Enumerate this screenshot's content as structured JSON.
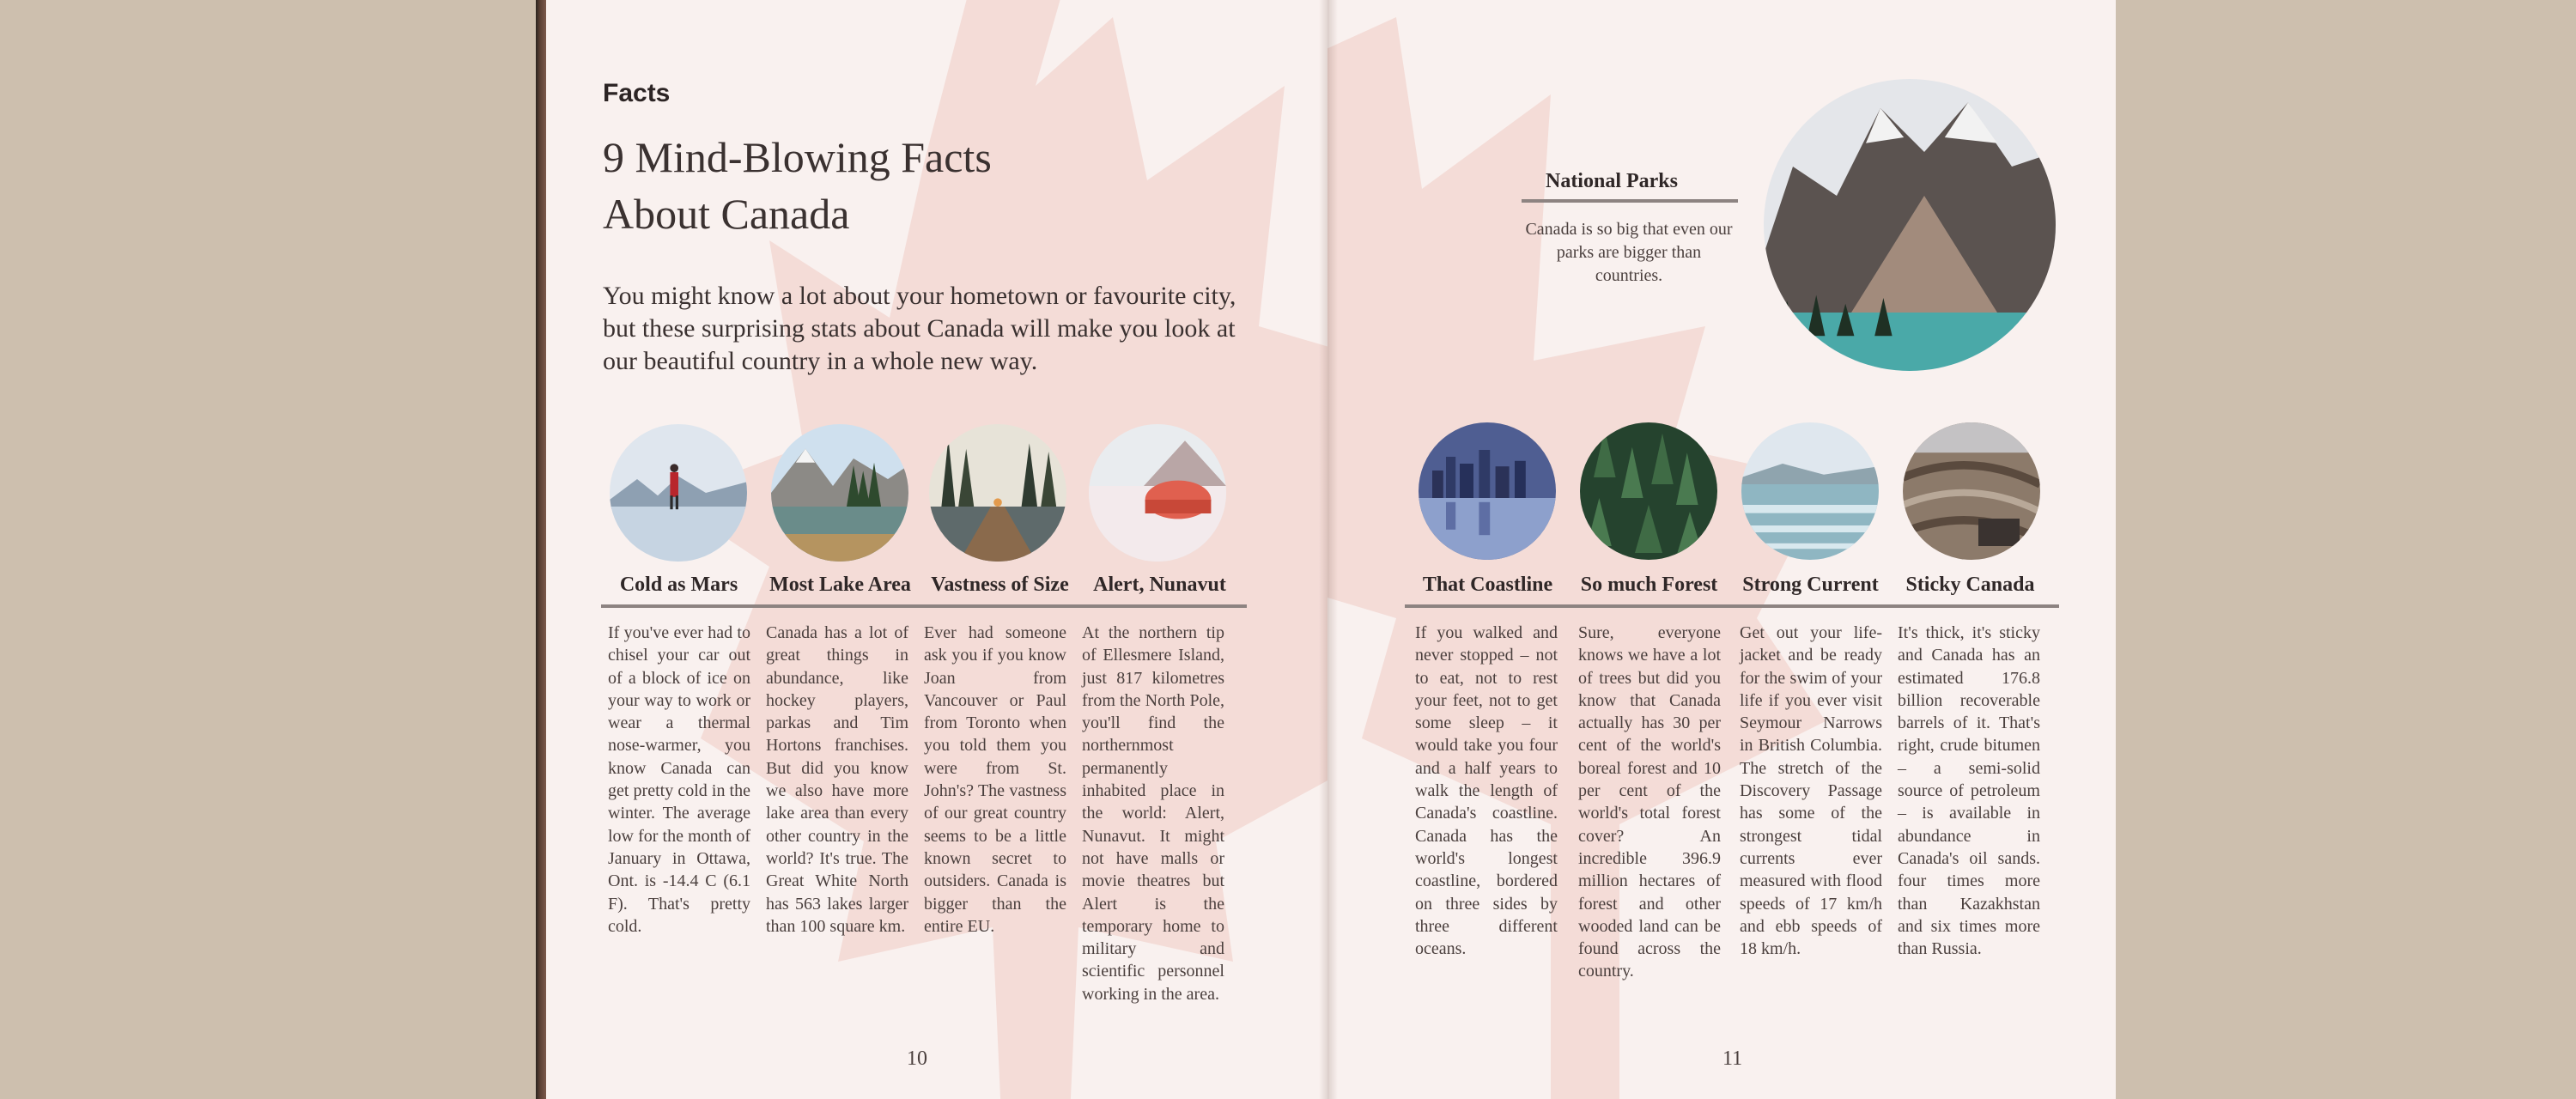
{
  "left_page": {
    "section_label": "Facts",
    "headline_line1": "9 Mind-Blowing Facts",
    "headline_line2": "About Canada",
    "intro": "You might know a lot about your hometown or favourite city, but these surprising stats about Canada will make you look at our beautiful country in a whole new way.",
    "page_number": "10",
    "facts": [
      {
        "title": "Cold as Mars",
        "image_icon": "icy-lake-hiker-photo",
        "body": "If you've ever had to chisel your car out of a block of ice on your way to work or wear a thermal nose-warmer, you know Canada can get pretty cold in the winter. The average low for the month of January in Ottawa, Ont. is -14.4 C (6.1 F). That's pretty cold."
      },
      {
        "title": "Most Lake Area",
        "image_icon": "mountain-lake-photo",
        "body": "Canada has a lot of great things in abundance, like hockey players, parkas and Tim Hortons franchises. But did you know we also have more lake area than every other country in the world? It's true. The Great White North has 563 lakes larger than 100 square km."
      },
      {
        "title": "Vastness of Size",
        "image_icon": "forest-boardwalk-photo",
        "body": "Ever had someone ask you if you know Joan from Vancouver or Paul from Toronto when you told them you were from St. John's? The vastness of our great country seems to be a little known secret to outsiders. Canada is bigger than the entire EU."
      },
      {
        "title": "Alert, Nunavut",
        "image_icon": "snow-tent-photo",
        "body": "At the northern tip of Ellesmere Island, just 817 kilometres from the North Pole, you'll find the northernmost permanently inhabited place in the world: Alert, Nunavut. It might not have malls or movie theatres but Alert is the temporary home to military and scientific personnel working in the area."
      }
    ]
  },
  "right_page": {
    "page_number": "11",
    "feature": {
      "title": "National Parks",
      "text": "Canada is so big that even our parks are bigger than countries.",
      "image_icon": "mountain-lake-national-park-photo"
    },
    "facts": [
      {
        "title": "That Coastline",
        "image_icon": "city-skyline-reflection-photo",
        "body": "If you walked and never stopped – not to eat, not to rest your feet, not to get some sleep – it would take you four and a half years to walk the length of Canada's coastline. Canada has the world's longest coastline, bordered on three sides by three different oceans."
      },
      {
        "title": "So much Forest",
        "image_icon": "pine-forest-aerial-photo",
        "body": "Sure, everyone knows we have a lot of trees but did you know that Canada actually has 30 per cent of the world's boreal forest and 10 per cent of the world's total forest cover? An incredible 396.9 million hectares of forest and other wooded land can be found across the country."
      },
      {
        "title": "Strong Current",
        "image_icon": "ocean-waves-photo",
        "body": "Get out your life-jacket and be ready for the swim of your life if you ever visit Seymour Narrows in British Columbia. The stretch of the Discovery Passage has some of the strongest tidal currents ever measured with flood speeds of 17 km/h and ebb speeds of 18 km/h."
      },
      {
        "title": "Sticky Canada",
        "image_icon": "oil-sands-aerial-photo",
        "body": "It's thick, it's sticky and Canada has an estimated 176.8 billion recoverable barrels of it. That's right, crude bitumen – a semi-solid source of petroleum – is available in abundance in Canada's oil sands. four times more than Kazakhstan and six times more than Russia."
      }
    ]
  },
  "colors": {
    "background": "#cdbfae",
    "paper": "#f9f1ef",
    "maple_leaf": "#f4dcd7",
    "rule": "#8d8381",
    "text": "#3a3130"
  }
}
